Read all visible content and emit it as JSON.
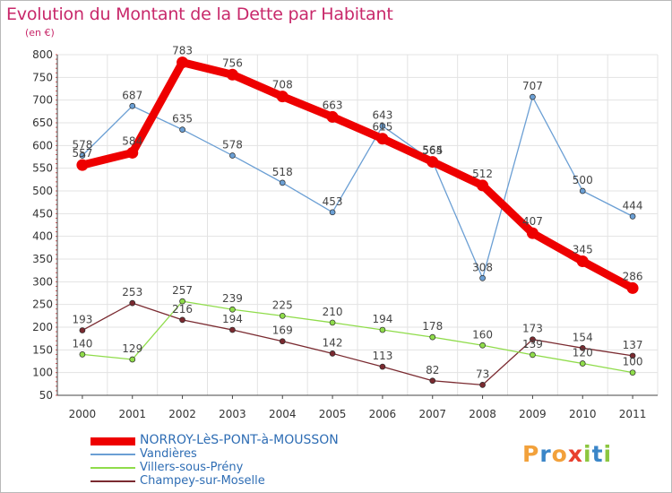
{
  "chart_data": {
    "type": "line",
    "title": "Evolution du Montant de la Dette par Habitant",
    "subtitle": "(en €)",
    "categories": [
      "2000",
      "2001",
      "2002",
      "2003",
      "2004",
      "2005",
      "2006",
      "2007",
      "2008",
      "2009",
      "2010",
      "2011"
    ],
    "ylim": [
      50,
      800
    ],
    "yticks": [
      50,
      100,
      150,
      200,
      250,
      300,
      350,
      400,
      450,
      500,
      550,
      600,
      650,
      700,
      750,
      800
    ],
    "grid": true,
    "legend_position": "bottom",
    "series": [
      {
        "name": "NORROY-LèS-PONT-à-MOUSSON",
        "color": "#ee0000",
        "values": [
          557,
          584,
          783,
          756,
          708,
          663,
          615,
          564,
          512,
          407,
          345,
          286
        ]
      },
      {
        "name": "Vandières",
        "color": "#6b9fd4",
        "values": [
          578,
          687,
          635,
          578,
          518,
          453,
          643,
          565,
          308,
          707,
          500,
          444
        ]
      },
      {
        "name": "Villers-sous-Prény",
        "color": "#8fdc4a",
        "values": [
          140,
          129,
          257,
          239,
          225,
          210,
          194,
          178,
          160,
          139,
          120,
          100
        ]
      },
      {
        "name": "Champey-sur-Moselle",
        "color": "#7a2a30",
        "values": [
          193,
          253,
          216,
          194,
          169,
          142,
          113,
          82,
          73,
          173,
          154,
          137
        ]
      }
    ]
  },
  "logo": {
    "text": "Proxiti",
    "letters": [
      {
        "char": "P",
        "color": "#f2a13b"
      },
      {
        "char": "r",
        "color": "#3b86c8"
      },
      {
        "char": "o",
        "color": "#f2a13b"
      },
      {
        "char": "x",
        "color": "#e8402f"
      },
      {
        "char": "i",
        "color": "#8cc63f"
      },
      {
        "char": "t",
        "color": "#3b86c8"
      },
      {
        "char": "i",
        "color": "#8cc63f"
      }
    ]
  }
}
